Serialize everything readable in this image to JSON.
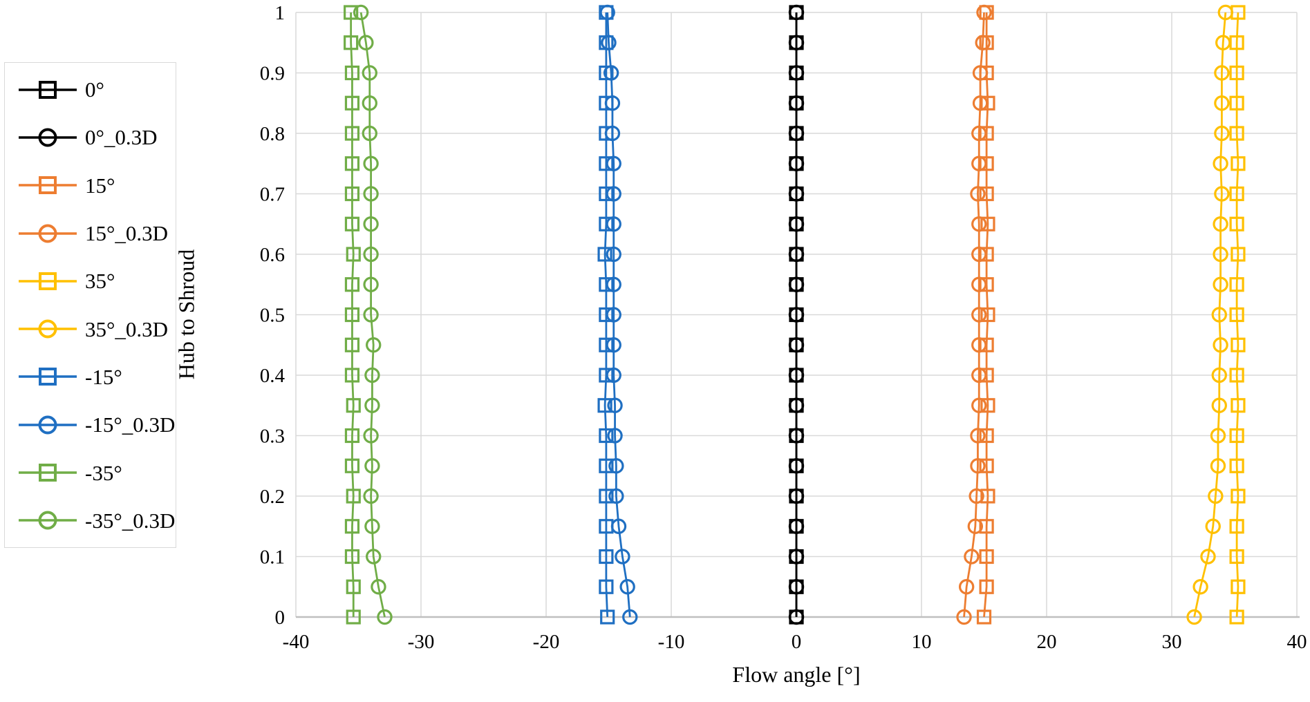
{
  "chart_data": {
    "type": "line",
    "title": "",
    "xlabel": "Flow angle [°]",
    "ylabel": "Hub to Shroud",
    "xlim": [
      -40,
      40
    ],
    "ylim": [
      0,
      1
    ],
    "grid": true,
    "legend_position": "left",
    "grid_color": "#D9D9D9",
    "axis_color": "#BFBFBF",
    "x_ticks": [
      -40,
      -30,
      -20,
      -10,
      0,
      10,
      20,
      30,
      40
    ],
    "x_tick_labels": [
      "-40",
      "-30",
      "-20",
      "-10",
      "0",
      "10",
      "20",
      "30",
      "40"
    ],
    "y_ticks": [
      0,
      0.1,
      0.2,
      0.3,
      0.4,
      0.5,
      0.6,
      0.7,
      0.8,
      0.9,
      1
    ],
    "y_tick_labels": [
      "0",
      "0.1",
      "0.2",
      "0.3",
      "0.4",
      "0.5",
      "0.6",
      "0.7",
      "0.8",
      "0.9",
      "1"
    ],
    "hub_to_shroud": [
      0,
      0.05,
      0.1,
      0.15,
      0.2,
      0.25,
      0.3,
      0.35,
      0.4,
      0.45,
      0.5,
      0.55,
      0.6,
      0.65,
      0.7,
      0.75,
      0.8,
      0.85,
      0.9,
      0.95,
      1
    ],
    "series": [
      {
        "name": "0°",
        "color": "#000000",
        "marker": "square",
        "values": [
          0,
          0,
          0,
          0,
          0,
          0,
          0,
          0,
          0,
          0,
          0,
          0,
          0,
          0,
          0,
          0,
          0,
          0,
          0,
          0,
          0
        ]
      },
      {
        "name": "0°_0.3D",
        "color": "#000000",
        "marker": "circle",
        "values": [
          0,
          0,
          0,
          0,
          0,
          0,
          0,
          0,
          0,
          0,
          0,
          0,
          0,
          0,
          0,
          0,
          0,
          0,
          0,
          0,
          0
        ]
      },
      {
        "name": "15°",
        "color": "#ED7D31",
        "marker": "square",
        "values": [
          15.0,
          15.2,
          15.2,
          15.2,
          15.3,
          15.2,
          15.2,
          15.3,
          15.2,
          15.2,
          15.3,
          15.2,
          15.2,
          15.3,
          15.2,
          15.2,
          15.2,
          15.3,
          15.2,
          15.2,
          15.2
        ]
      },
      {
        "name": "15°_0.3D",
        "color": "#ED7D31",
        "marker": "circle",
        "values": [
          13.4,
          13.6,
          14.0,
          14.3,
          14.4,
          14.5,
          14.5,
          14.6,
          14.6,
          14.6,
          14.6,
          14.6,
          14.6,
          14.6,
          14.5,
          14.6,
          14.6,
          14.7,
          14.7,
          14.9,
          15.0
        ]
      },
      {
        "name": "35°",
        "color": "#FFC000",
        "marker": "square",
        "values": [
          35.2,
          35.3,
          35.2,
          35.2,
          35.3,
          35.2,
          35.2,
          35.3,
          35.2,
          35.3,
          35.2,
          35.2,
          35.3,
          35.2,
          35.2,
          35.3,
          35.2,
          35.2,
          35.2,
          35.2,
          35.3
        ]
      },
      {
        "name": "35°_0.3D",
        "color": "#FFC000",
        "marker": "circle",
        "values": [
          31.8,
          32.3,
          32.9,
          33.3,
          33.5,
          33.7,
          33.7,
          33.8,
          33.8,
          33.9,
          33.8,
          33.9,
          33.9,
          33.9,
          34.0,
          33.9,
          34.0,
          34.0,
          34.0,
          34.1,
          34.3
        ]
      },
      {
        "name": "-15°",
        "color": "#1F6FC2",
        "marker": "square",
        "values": [
          -15.1,
          -15.2,
          -15.2,
          -15.2,
          -15.2,
          -15.2,
          -15.2,
          -15.3,
          -15.2,
          -15.2,
          -15.2,
          -15.2,
          -15.3,
          -15.2,
          -15.2,
          -15.2,
          -15.2,
          -15.2,
          -15.2,
          -15.2,
          -15.2
        ]
      },
      {
        "name": "-15°_0.3D",
        "color": "#1F6FC2",
        "marker": "circle",
        "values": [
          -13.3,
          -13.5,
          -13.9,
          -14.2,
          -14.4,
          -14.4,
          -14.5,
          -14.5,
          -14.6,
          -14.6,
          -14.6,
          -14.6,
          -14.6,
          -14.6,
          -14.6,
          -14.6,
          -14.7,
          -14.7,
          -14.8,
          -15.0,
          -15.1
        ]
      },
      {
        "name": "-35°",
        "color": "#70AD47",
        "marker": "square",
        "values": [
          -35.4,
          -35.4,
          -35.5,
          -35.5,
          -35.4,
          -35.5,
          -35.5,
          -35.4,
          -35.5,
          -35.5,
          -35.5,
          -35.5,
          -35.4,
          -35.5,
          -35.5,
          -35.5,
          -35.5,
          -35.5,
          -35.5,
          -35.6,
          -35.6
        ]
      },
      {
        "name": "-35°_0.3D",
        "color": "#70AD47",
        "marker": "circle",
        "values": [
          -32.9,
          -33.4,
          -33.8,
          -33.9,
          -34.0,
          -33.9,
          -34.0,
          -33.9,
          -33.9,
          -33.8,
          -34.0,
          -34.0,
          -34.0,
          -34.0,
          -34.0,
          -34.0,
          -34.1,
          -34.1,
          -34.1,
          -34.4,
          -34.8
        ]
      }
    ]
  }
}
